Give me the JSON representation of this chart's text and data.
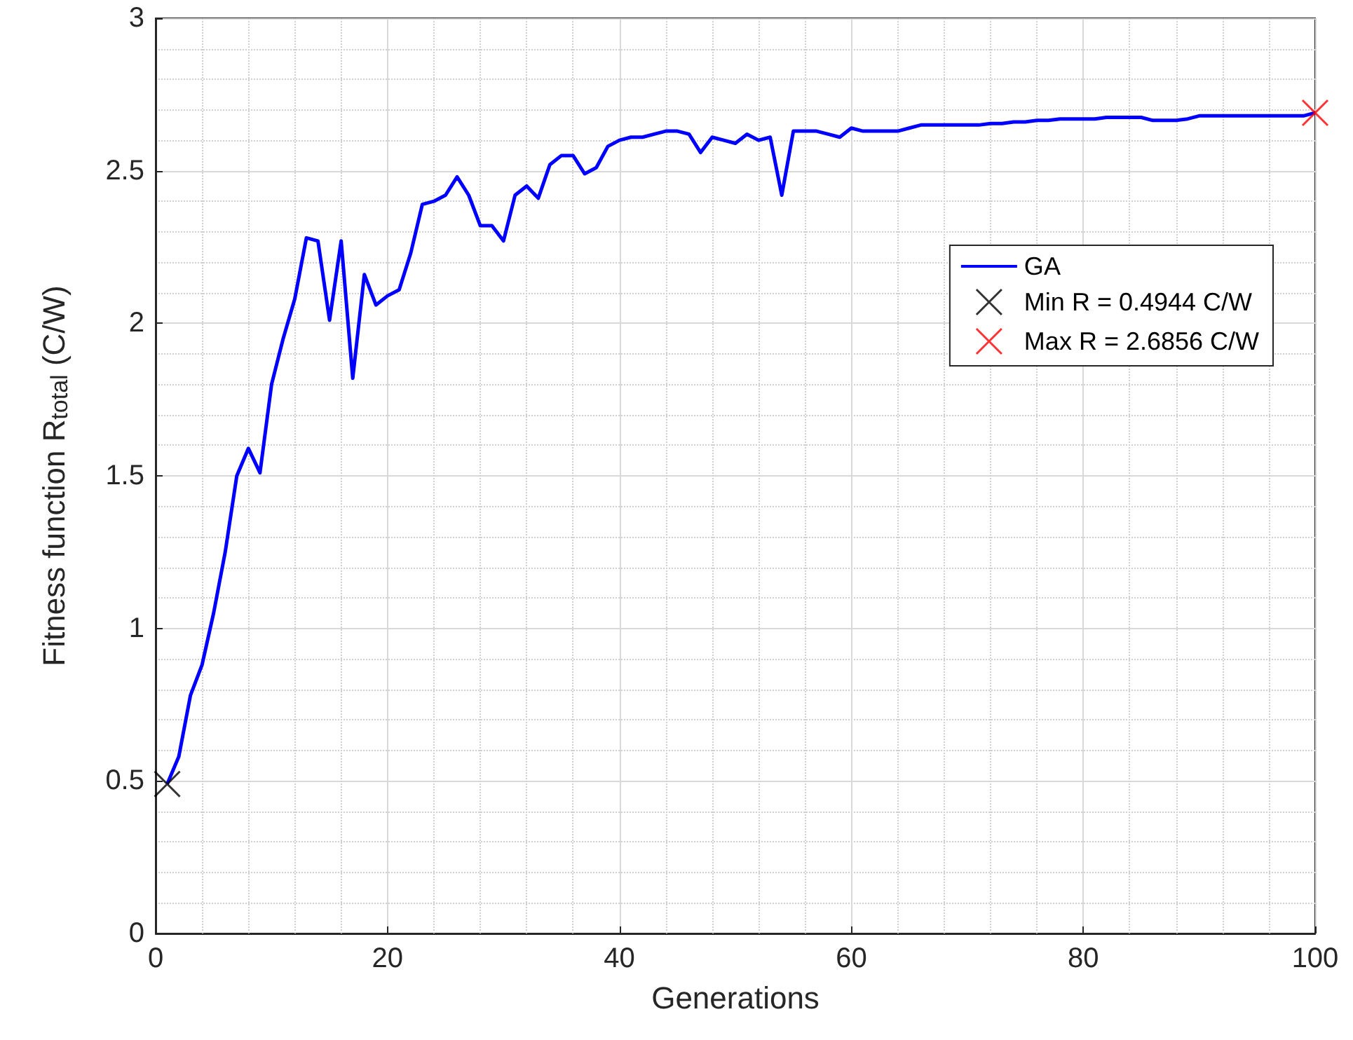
{
  "chart_data": {
    "type": "line",
    "xlabel": "Generations",
    "ylabel": "Fitness function R$_{total}$ (C/W)",
    "x": [
      1,
      2,
      3,
      4,
      5,
      6,
      7,
      8,
      9,
      10,
      11,
      12,
      13,
      14,
      15,
      16,
      17,
      18,
      19,
      20,
      21,
      22,
      23,
      24,
      25,
      26,
      27,
      28,
      29,
      30,
      31,
      32,
      33,
      34,
      35,
      36,
      37,
      38,
      39,
      40,
      41,
      42,
      43,
      44,
      45,
      46,
      47,
      48,
      49,
      50,
      51,
      52,
      53,
      54,
      55,
      56,
      57,
      58,
      59,
      60,
      61,
      62,
      63,
      64,
      65,
      66,
      67,
      68,
      69,
      70,
      71,
      72,
      73,
      74,
      75,
      76,
      77,
      78,
      79,
      80,
      81,
      82,
      83,
      84,
      85,
      86,
      87,
      88,
      89,
      90,
      91,
      92,
      93,
      94,
      95,
      96,
      97,
      98,
      99,
      100
    ],
    "series": [
      {
        "name": "GA",
        "color": "#0000ff",
        "marker": "none",
        "values": [
          0.49,
          0.58,
          0.78,
          0.88,
          1.05,
          1.25,
          1.5,
          1.59,
          1.51,
          1.8,
          1.95,
          2.08,
          2.28,
          2.27,
          2.01,
          2.27,
          1.82,
          2.16,
          2.06,
          2.09,
          2.11,
          2.23,
          2.39,
          2.4,
          2.42,
          2.48,
          2.42,
          2.32,
          2.32,
          2.27,
          2.42,
          2.45,
          2.41,
          2.52,
          2.55,
          2.55,
          2.49,
          2.51,
          2.58,
          2.6,
          2.61,
          2.61,
          2.62,
          2.63,
          2.63,
          2.62,
          2.56,
          2.61,
          2.6,
          2.59,
          2.62,
          2.6,
          2.61,
          2.42,
          2.63,
          2.63,
          2.63,
          2.62,
          2.61,
          2.64,
          2.63,
          2.63,
          2.63,
          2.63,
          2.64,
          2.65,
          2.65,
          2.65,
          2.65,
          2.65,
          2.65,
          2.655,
          2.655,
          2.66,
          2.66,
          2.665,
          2.665,
          2.67,
          2.67,
          2.67,
          2.67,
          2.675,
          2.675,
          2.675,
          2.675,
          2.665,
          2.665,
          2.665,
          2.67,
          2.68,
          2.68,
          2.68,
          2.68,
          2.68,
          2.68,
          2.68,
          2.68,
          2.68,
          2.68,
          2.69
        ]
      },
      {
        "name": "Min R = 0.4944 C/W",
        "type": "scatter",
        "color": "#000000",
        "marker": "cross",
        "x": [
          1
        ],
        "values": [
          0.49
        ]
      },
      {
        "name": "Max R = 2.6856 C/W",
        "type": "scatter",
        "color": "#ff0000",
        "marker": "cross",
        "x": [
          100
        ],
        "values": [
          2.69
        ]
      }
    ],
    "xlim": [
      0,
      100
    ],
    "xticks": [
      0,
      20,
      40,
      60,
      80,
      100
    ],
    "ylim": [
      0,
      3
    ],
    "yticks": [
      0,
      0.5,
      1,
      1.5,
      2,
      2.5,
      3
    ],
    "grid": true,
    "legend": "right"
  }
}
